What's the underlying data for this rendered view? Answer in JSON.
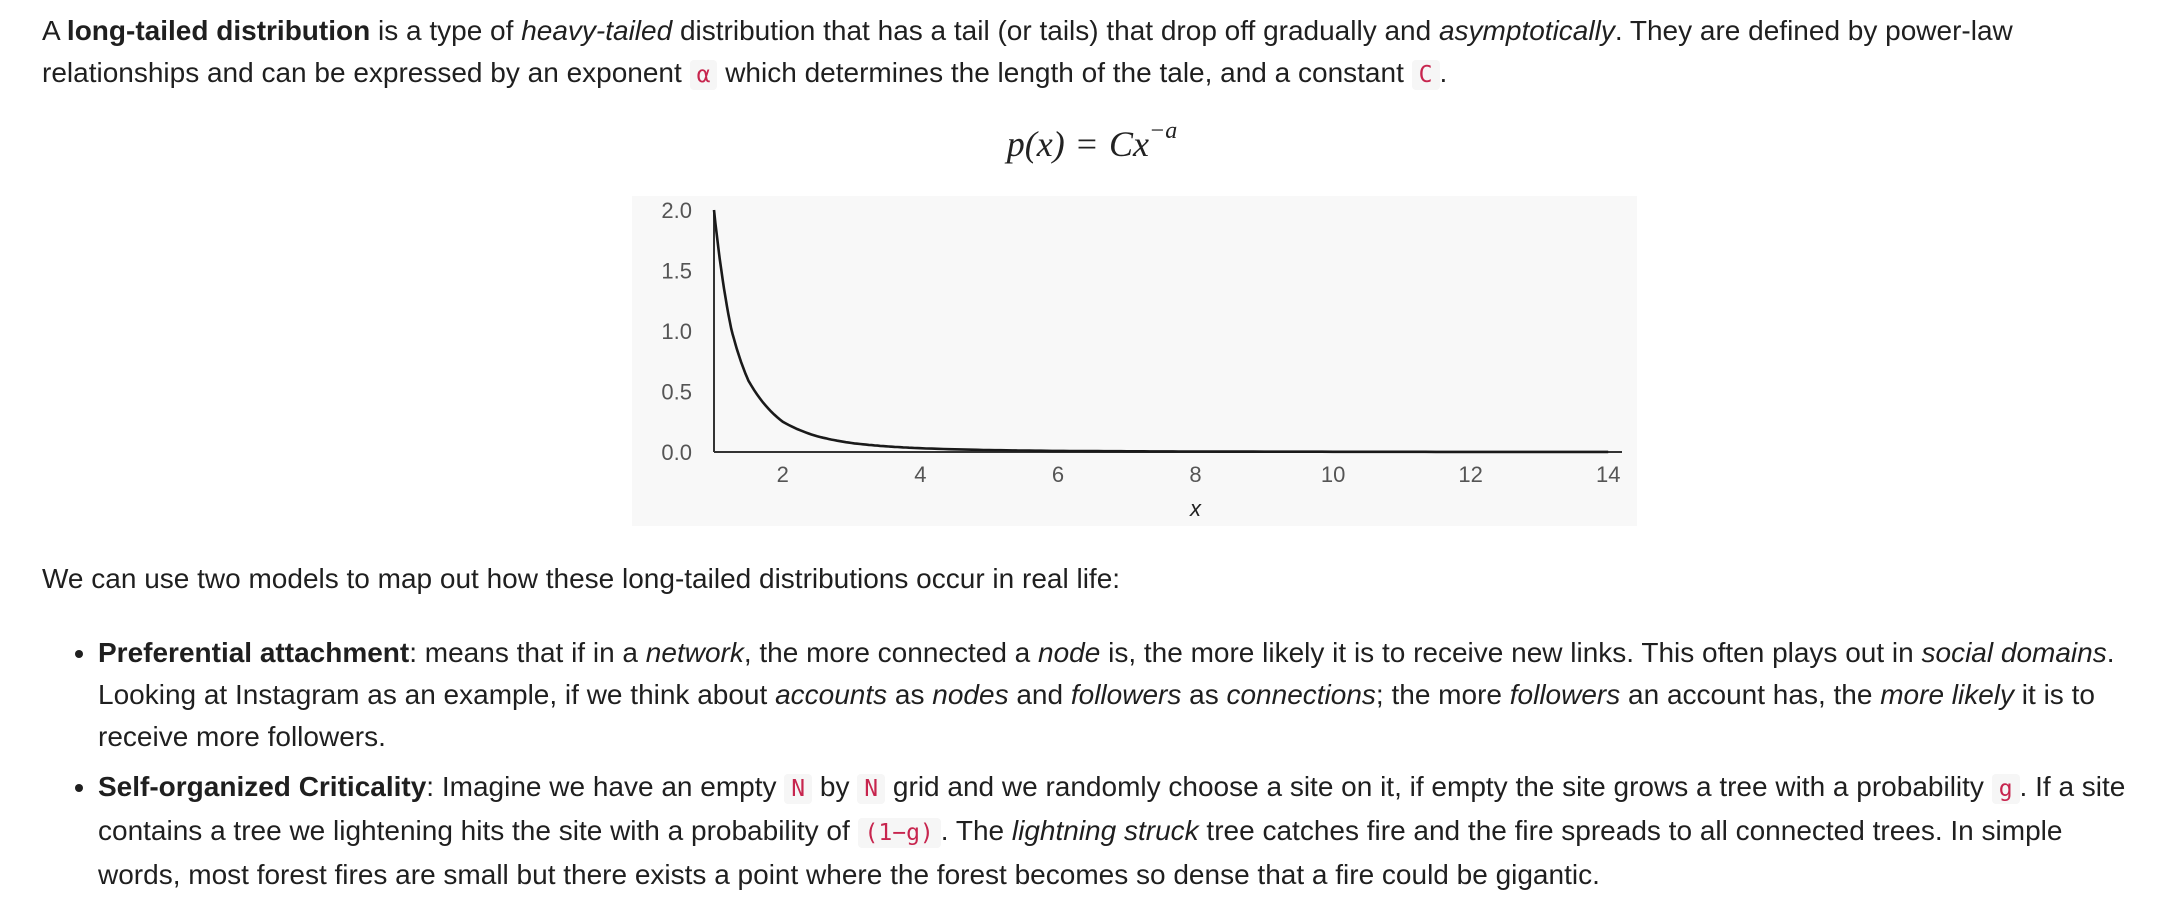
{
  "intro": {
    "t1": "A ",
    "b1": "long-tailed distribution",
    "t2": " is a type of ",
    "i1": "heavy-tailed",
    "t3": " distribution that has a tail (or tails) that drop off gradually and ",
    "i2": "asymptotically",
    "t4": ". They are defined by power-law relationships and can be expressed by an exponent ",
    "c1": "α",
    "t5": " which determines the length of the tale, and a constant ",
    "c2": "C",
    "t6": "."
  },
  "formula": {
    "lhs": "p(x)",
    "eq": "=",
    "rhs": "Cx",
    "exponent": "−a"
  },
  "chart_data": {
    "type": "line",
    "title": "",
    "xlabel": "x",
    "ylabel": "",
    "xlim": [
      1,
      14.2
    ],
    "ylim": [
      0,
      2.0
    ],
    "x_ticks": [
      2,
      4,
      6,
      8,
      10,
      12,
      14
    ],
    "y_ticks": [
      "0.0",
      "0.5",
      "1.0",
      "1.5",
      "2.0"
    ],
    "grid": false,
    "background": "#f8f8f8",
    "line_color": "#1a1a1a",
    "series": [
      {
        "x": [
          1,
          1.25,
          1.5,
          2,
          2.5,
          3,
          3.5,
          4,
          5,
          6,
          7,
          8,
          10,
          12,
          14
        ],
        "y": [
          2.0,
          1.02,
          0.59,
          0.25,
          0.13,
          0.074,
          0.047,
          0.031,
          0.016,
          0.009,
          0.006,
          0.004,
          0.002,
          0.001,
          0.0007
        ]
      }
    ]
  },
  "after_intro": "We can use two models to map out how these long-tailed distributions occur in real life:",
  "bullets": {
    "pref": {
      "b": "Preferential attachment",
      "t1": ": means that if in a ",
      "i1": "network",
      "t2": ", the more connected a ",
      "i2": "node",
      "t3": " is, the more likely it is to receive new links. This often plays out in ",
      "i3": "social domains",
      "t4": ". Looking at Instagram as an example, if we think about ",
      "i4": "accounts",
      "t5": " as ",
      "i5": "nodes",
      "t6": " and ",
      "i6": "followers",
      "t7": " as ",
      "i7": "connections",
      "t8": "; the more ",
      "i8": "followers",
      "t9": " an account has, the ",
      "i9": "more likely",
      "t10": " it is to receive more followers."
    },
    "soc": {
      "b": "Self-organized Criticality",
      "t1": ": Imagine we have an empty ",
      "c1": "N",
      "t2": " by ",
      "c2": "N",
      "t3": " grid and we randomly choose a site on it, if empty the site grows a tree with a probability ",
      "c3": "g",
      "t4": ". If a site contains a tree we lightening hits the site with a probability of ",
      "c4": "(1−g)",
      "t5": ". The ",
      "i1": "lightning struck",
      "t6": " tree catches fire and the fire spreads to all connected trees. In simple words, most forest fires are small but there exists a point where the forest becomes so dense that a fire could be gigantic."
    }
  }
}
